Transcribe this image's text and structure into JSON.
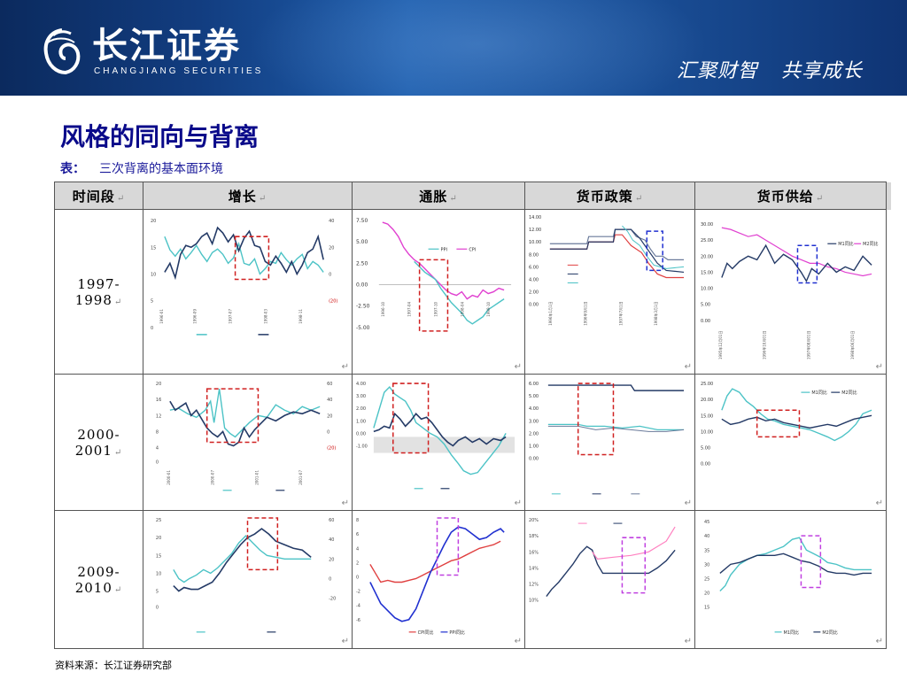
{
  "header": {
    "brand_cn": "长江证券",
    "brand_en": "CHANGJIANG SECURITIES",
    "slogan_left": "汇聚财智",
    "slogan_right": "共享成长"
  },
  "title": "风格的同向与背离",
  "caption": {
    "label": "表：",
    "text": "三次背离的基本面环境"
  },
  "columns": [
    "时间段",
    "增长",
    "通胀",
    "货币政策",
    "货币供给"
  ],
  "rows": [
    {
      "period": "1997-1998"
    },
    {
      "period": "2000-2001"
    },
    {
      "period": "2009-2010"
    }
  ],
  "mini_charts": {
    "r1_inflation": {
      "legend": [
        "PPI",
        "CPI"
      ],
      "yticks": [
        "7.50",
        "5.00",
        "2.50",
        "0.00",
        "-2.50",
        "-5.00"
      ]
    },
    "r1_money_supply": {
      "legend": [
        "M1同比",
        "M2同比"
      ],
      "yticks": [
        "30.00",
        "25.00",
        "20.00",
        "15.00",
        "10.00",
        "5.00",
        "0.00"
      ]
    },
    "r1_policy": {
      "yticks": [
        "14.00",
        "12.00",
        "10.00",
        "8.00",
        "6.00",
        "4.00",
        "2.00",
        "0.00"
      ]
    },
    "r2_policy": {
      "yticks": [
        "6.00",
        "5.00",
        "4.00",
        "3.00",
        "2.00",
        "1.00",
        "0.00"
      ]
    },
    "r2_money_supply": {
      "legend": [
        "M1同比",
        "M2同比"
      ],
      "yticks": [
        "25.00",
        "20.00",
        "15.00",
        "10.00",
        "5.00",
        "0.00"
      ]
    },
    "r3_inflation": {
      "legend": [
        "CPI同比",
        "PPI同比"
      ]
    },
    "r3_money_supply": {
      "legend": [
        "M1同比",
        "M2同比"
      ]
    }
  },
  "source": "资料来源：长江证券研究部",
  "colors": {
    "header_dark": "#0b2a5e",
    "title": "#0a0a8a",
    "teal": "#4cc3c6",
    "navy": "#243a66",
    "magenta": "#e040d0",
    "red_box": "#d02020",
    "blue_box": "#2030d0",
    "violet_box": "#c040e0"
  }
}
